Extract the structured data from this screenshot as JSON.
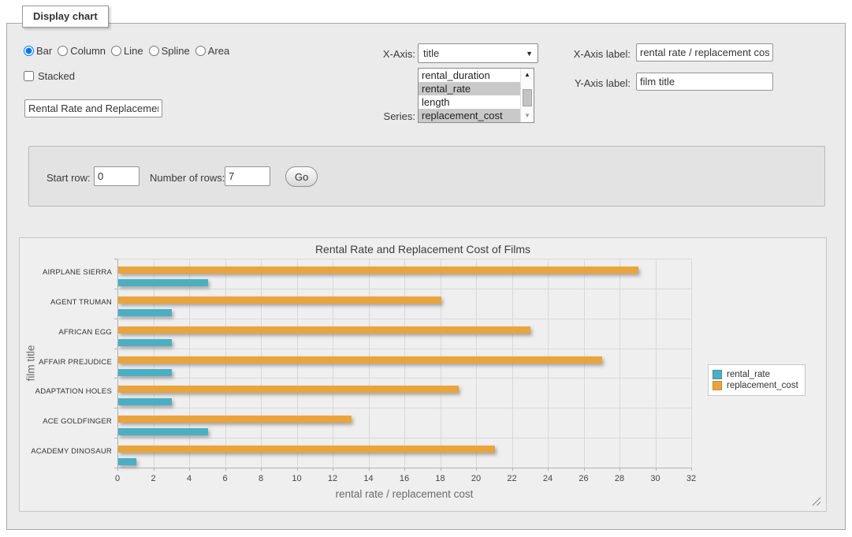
{
  "window": {
    "legend": "Display chart"
  },
  "controls": {
    "chart_types": [
      {
        "label": "Bar",
        "selected": true
      },
      {
        "label": "Column",
        "selected": false
      },
      {
        "label": "Line",
        "selected": false
      },
      {
        "label": "Spline",
        "selected": false
      },
      {
        "label": "Area",
        "selected": false
      }
    ],
    "stacked": {
      "label": "Stacked",
      "checked": false
    },
    "chart_title_input": {
      "value": "Rental Rate and Replacement Cost of Films"
    },
    "x_axis": {
      "label": "X-Axis:",
      "selected_option": "title"
    },
    "series_list": {
      "label": "Series:",
      "options": [
        {
          "label": "rental_duration",
          "selected": false
        },
        {
          "label": "rental_rate",
          "selected": true
        },
        {
          "label": "length",
          "selected": false
        },
        {
          "label": "replacement_cost",
          "selected": true
        }
      ]
    },
    "x_axis_label_field": {
      "label": "X-Axis label:",
      "value": "rental rate / replacement cost"
    },
    "y_axis_label_field": {
      "label": "Y-Axis label:",
      "value": "film title"
    },
    "row_form": {
      "start_row_label": "Start row:",
      "start_row_value": "0",
      "number_of_rows_label": "Number of rows:",
      "number_of_rows_value": "7",
      "go_button": "Go"
    }
  },
  "chart_data": {
    "type": "bar",
    "title": "Rental Rate and Replacement Cost of Films",
    "categories": [
      "AIRPLANE SIERRA",
      "AGENT TRUMAN",
      "AFRICAN EGG",
      "AFFAIR PREJUDICE",
      "ADAPTATION HOLES",
      "ACE GOLDFINGER",
      "ACADEMY DINOSAUR"
    ],
    "series": [
      {
        "name": "rental_rate",
        "color": "#4BAFC4",
        "values": [
          5,
          3,
          3,
          3,
          3,
          5,
          1
        ]
      },
      {
        "name": "replacement_cost",
        "color": "#EAA43C",
        "values": [
          29,
          18,
          23,
          27,
          19,
          13,
          21
        ]
      }
    ],
    "xlabel": "rental rate / replacement cost",
    "ylabel": "film title",
    "xlim": [
      0,
      32
    ],
    "xtick_step": 2,
    "grid": true,
    "legend_position": "right-middle",
    "bar_order_top_to_bottom": [
      "replacement_cost",
      "rental_rate"
    ]
  }
}
